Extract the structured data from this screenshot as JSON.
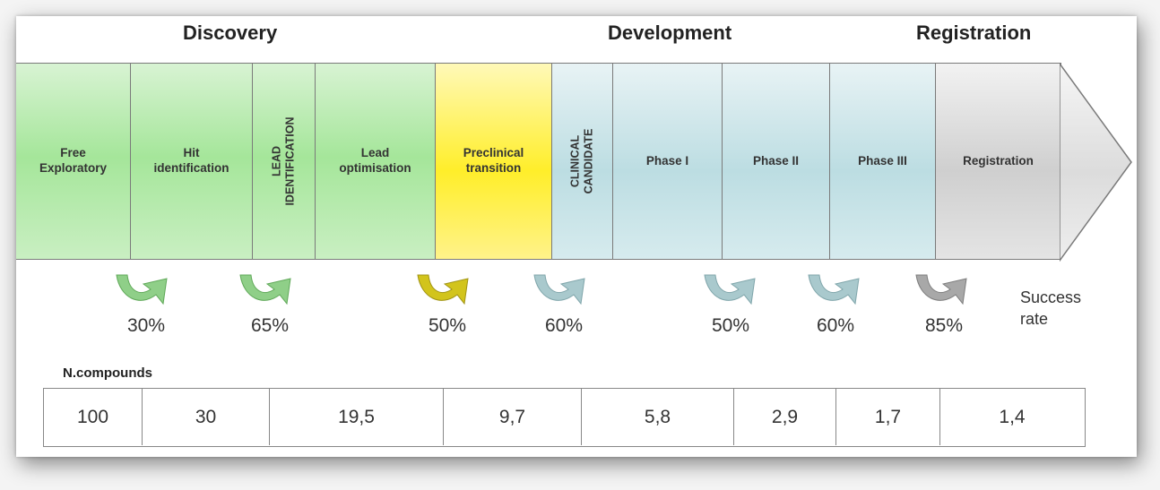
{
  "phases": {
    "discovery": "Discovery",
    "development": "Development",
    "registration": "Registration"
  },
  "stages": [
    {
      "label": "Free\nExploratory",
      "color": "green",
      "vertical": false
    },
    {
      "label": "Hit\nidentification",
      "color": "green",
      "vertical": false
    },
    {
      "label": "LEAD\nIDENTIFICATION",
      "color": "green",
      "vertical": true
    },
    {
      "label": "Lead\noptimisation",
      "color": "green",
      "vertical": false
    },
    {
      "label": "Preclinical\ntransition",
      "color": "yellow",
      "vertical": false
    },
    {
      "label": "CLINICAL\nCANDIDATE",
      "color": "blue",
      "vertical": true
    },
    {
      "label": "Phase I",
      "color": "blue",
      "vertical": false
    },
    {
      "label": "Phase II",
      "color": "blue",
      "vertical": false
    },
    {
      "label": "Phase III",
      "color": "blue",
      "vertical": false
    },
    {
      "label": "Registration",
      "color": "gray",
      "vertical": false
    }
  ],
  "success_rates": [
    {
      "value": "30%",
      "color": "#8fcf88"
    },
    {
      "value": "65%",
      "color": "#8fcf88"
    },
    {
      "value": "50%",
      "color": "#d2c41c"
    },
    {
      "value": "60%",
      "color": "#a9c9cd"
    },
    {
      "value": "50%",
      "color": "#a9c9cd"
    },
    {
      "value": "60%",
      "color": "#a9c9cd"
    },
    {
      "value": "85%",
      "color": "#a8a8a8"
    }
  ],
  "success_label": "Success\nrate",
  "compounds_label": "N.compounds",
  "compounds": [
    "100",
    "30",
    "19,5",
    "9,7",
    "5,8",
    "2,9",
    "1,7",
    "1,4"
  ],
  "colors": {
    "green": "#a5e69a",
    "yellow": "#ffee2a",
    "blue": "#bcdde2",
    "gray": "#cfcfcf",
    "border": "#7a7a7a"
  }
}
